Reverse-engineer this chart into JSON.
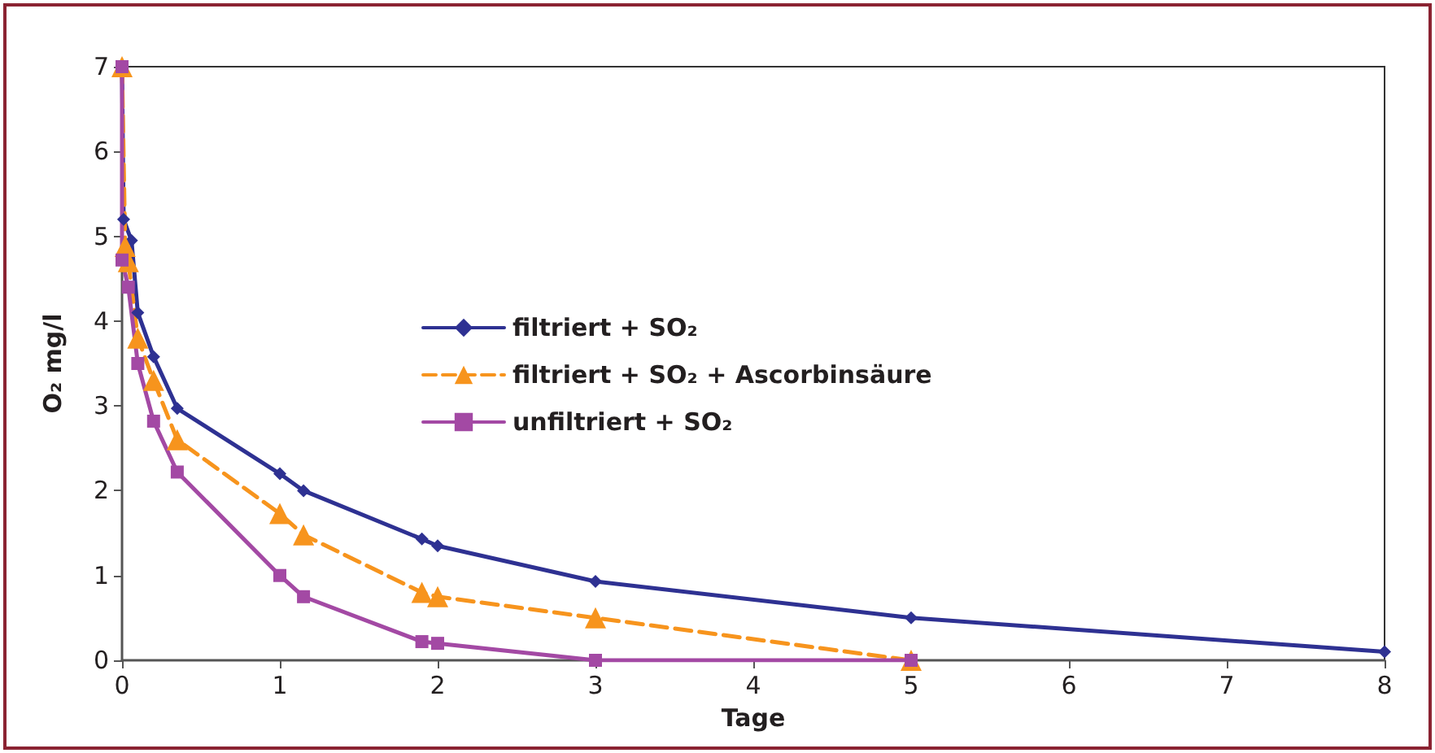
{
  "chart_data": {
    "type": "line",
    "xlabel": "Tage",
    "ylabel": "O₂ mg/l",
    "xlim": [
      0,
      8
    ],
    "xticks": [
      0,
      1,
      2,
      3,
      4,
      5,
      6,
      7,
      8
    ],
    "ylim": [
      0,
      7
    ],
    "yticks": [
      0,
      1,
      2,
      3,
      4,
      5,
      6,
      7
    ],
    "grid": false,
    "legend": "center",
    "series": [
      {
        "name": "filtriert + SO₂",
        "color": "#2e3192",
        "marker": "diamond",
        "line_style": "solid",
        "x": [
          0,
          0.01,
          0.06,
          0.1,
          0.2,
          0.35,
          1,
          1.15,
          1.9,
          2,
          3,
          5,
          8
        ],
        "values": [
          7,
          5.2,
          4.95,
          4.1,
          3.58,
          2.97,
          2.2,
          2.0,
          1.43,
          1.35,
          0.93,
          0.5,
          0.1
        ]
      },
      {
        "name": "filtriert + SO₂ + Ascorbinsäure",
        "color": "#f7941d",
        "marker": "triangle",
        "line_style": "dashed",
        "x": [
          0,
          0.02,
          0.04,
          0.1,
          0.2,
          0.35,
          1,
          1.15,
          1.9,
          2,
          3,
          5
        ],
        "values": [
          7,
          4.88,
          4.7,
          3.8,
          3.3,
          2.6,
          1.73,
          1.48,
          0.8,
          0.75,
          0.5,
          0
        ]
      },
      {
        "name": "unfiltriert + SO₂",
        "color": "#a349a4",
        "marker": "square",
        "line_style": "solid",
        "x": [
          0,
          0,
          0.04,
          0.1,
          0.2,
          0.35,
          1,
          1.15,
          1.9,
          2,
          3,
          5
        ],
        "values": [
          7,
          4.72,
          4.4,
          3.5,
          2.82,
          2.22,
          1.0,
          0.75,
          0.22,
          0.2,
          0,
          0
        ]
      }
    ]
  }
}
